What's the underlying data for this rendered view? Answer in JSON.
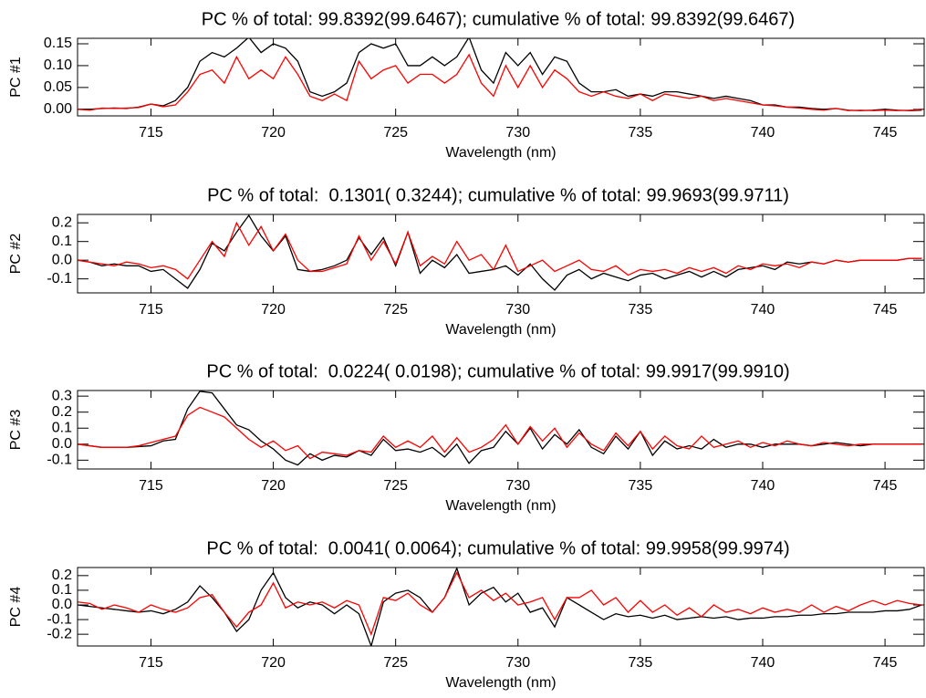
{
  "chart_data": [
    {
      "type": "line",
      "title": "PC % of total: 99.8392(99.6467); cumulative % of total: 99.8392(99.6467)",
      "xlabel": "Wavelength (nm)",
      "ylabel": "PC #1",
      "x": [
        712,
        712.5,
        713,
        713.5,
        714,
        714.5,
        715,
        715.5,
        716,
        716.5,
        717,
        717.5,
        718,
        718.5,
        719,
        719.5,
        720,
        720.5,
        721,
        721.5,
        722,
        722.5,
        723,
        723.5,
        724,
        724.5,
        725,
        725.5,
        726,
        726.5,
        727,
        727.5,
        728,
        728.5,
        729,
        729.5,
        730,
        730.5,
        731,
        731.5,
        732,
        732.5,
        733,
        733.5,
        734,
        734.5,
        735,
        735.5,
        736,
        736.5,
        737,
        737.5,
        738,
        738.5,
        739,
        739.5,
        740,
        740.5,
        741,
        741.5,
        742,
        742.5,
        743,
        743.5,
        744,
        744.5,
        745,
        745.5,
        746,
        746.5
      ],
      "xlim": [
        712,
        746.6
      ],
      "xticks": [
        715,
        720,
        725,
        730,
        735,
        740,
        745
      ],
      "ylim": [
        -0.015,
        0.1625
      ],
      "yticks": [
        {
          "value": 0,
          "label": "0.00"
        },
        0.05,
        {
          "value": 0.1,
          "label": "0.10"
        },
        0.15
      ],
      "series": [
        {
          "color": "#000000",
          "values": [
            0,
            0,
            0.002,
            0.003,
            0.002,
            0.005,
            0.012,
            0.008,
            0.02,
            0.05,
            0.11,
            0.13,
            0.12,
            0.14,
            0.165,
            0.13,
            0.15,
            0.14,
            0.11,
            0.04,
            0.03,
            0.04,
            0.06,
            0.13,
            0.15,
            0.14,
            0.15,
            0.1,
            0.1,
            0.12,
            0.1,
            0.12,
            0.165,
            0.09,
            0.06,
            0.13,
            0.1,
            0.13,
            0.08,
            0.12,
            0.11,
            0.06,
            0.04,
            0.04,
            0.045,
            0.03,
            0.035,
            0.03,
            0.04,
            0.04,
            0.035,
            0.03,
            0.025,
            0.03,
            0.025,
            0.02,
            0.01,
            0.01,
            0.005,
            0.005,
            0.002,
            0,
            0.002,
            -0.002,
            -0.003,
            -0.002,
            0,
            -0.002,
            -0.003,
            -0.002
          ]
        },
        {
          "color": "#ff0000",
          "values": [
            0,
            -0.002,
            0.003,
            0.002,
            0.003,
            0.004,
            0.012,
            0.006,
            0.01,
            0.04,
            0.08,
            0.09,
            0.06,
            0.12,
            0.07,
            0.09,
            0.07,
            0.12,
            0.08,
            0.03,
            0.02,
            0.035,
            0.02,
            0.11,
            0.07,
            0.09,
            0.1,
            0.06,
            0.08,
            0.08,
            0.06,
            0.08,
            0.125,
            0.06,
            0.03,
            0.1,
            0.05,
            0.1,
            0.05,
            0.09,
            0.07,
            0.04,
            0.03,
            0.04,
            0.03,
            0.025,
            0.035,
            0.02,
            0.035,
            0.03,
            0.025,
            0.03,
            0.02,
            0.025,
            0.02,
            0.015,
            0.01,
            0.008,
            0.005,
            0.003,
            0,
            -0.002,
            0.002,
            -0.003,
            -0.002,
            -0.003,
            -0.002,
            -0.003,
            -0.002,
            0
          ]
        }
      ]
    },
    {
      "type": "line",
      "title": "PC % of total:  0.1301( 0.3244); cumulative % of total: 99.9693(99.9711)",
      "xlabel": "Wavelength (nm)",
      "ylabel": "PC #2",
      "x": [
        712,
        712.5,
        713,
        713.5,
        714,
        714.5,
        715,
        715.5,
        716,
        716.5,
        717,
        717.5,
        718,
        718.5,
        719,
        719.5,
        720,
        720.5,
        721,
        721.5,
        722,
        722.5,
        723,
        723.5,
        724,
        724.5,
        725,
        725.5,
        726,
        726.5,
        727,
        727.5,
        728,
        728.5,
        729,
        729.5,
        730,
        730.5,
        731,
        731.5,
        732,
        732.5,
        733,
        733.5,
        734,
        734.5,
        735,
        735.5,
        736,
        736.5,
        737,
        737.5,
        738,
        738.5,
        739,
        739.5,
        740,
        740.5,
        741,
        741.5,
        742,
        742.5,
        743,
        743.5,
        744,
        744.5,
        745,
        745.5,
        746,
        746.5
      ],
      "xlim": [
        712,
        746.6
      ],
      "xticks": [
        715,
        720,
        725,
        730,
        735,
        740,
        745
      ],
      "ylim": [
        -0.175,
        0.245
      ],
      "yticks": [
        -0.1,
        {
          "value": 0,
          "label": "0.0"
        },
        0.1,
        0.2
      ],
      "series": [
        {
          "color": "#000000",
          "values": [
            0,
            -0.01,
            -0.03,
            -0.02,
            -0.03,
            -0.03,
            -0.06,
            -0.05,
            -0.1,
            -0.15,
            -0.05,
            0.09,
            0.05,
            0.15,
            0.24,
            0.13,
            0.05,
            0.13,
            -0.05,
            -0.06,
            -0.05,
            -0.03,
            0.0,
            0.12,
            0.03,
            0.12,
            -0.03,
            0.15,
            -0.07,
            0.0,
            -0.04,
            0.03,
            -0.07,
            -0.06,
            -0.05,
            -0.03,
            -0.08,
            -0.02,
            -0.1,
            -0.16,
            -0.08,
            -0.05,
            -0.1,
            -0.07,
            -0.09,
            -0.11,
            -0.08,
            -0.07,
            -0.1,
            -0.08,
            -0.06,
            -0.09,
            -0.06,
            -0.09,
            -0.05,
            -0.04,
            -0.03,
            -0.05,
            -0.01,
            -0.02,
            -0.01,
            -0.02,
            0,
            -0.01,
            0,
            0,
            0,
            0,
            0.01,
            0.01
          ]
        },
        {
          "color": "#ff0000",
          "values": [
            0,
            -0.01,
            -0.02,
            -0.03,
            -0.01,
            -0.02,
            -0.04,
            -0.03,
            -0.05,
            -0.1,
            0.0,
            0.1,
            0.02,
            0.2,
            0.08,
            0.18,
            0.05,
            0.14,
            0.0,
            -0.06,
            -0.06,
            -0.04,
            -0.02,
            0.13,
            0.0,
            0.1,
            -0.02,
            0.15,
            -0.03,
            0.02,
            -0.02,
            0.1,
            0.0,
            0.03,
            -0.05,
            0.08,
            -0.06,
            -0.03,
            0.0,
            -0.06,
            -0.03,
            0.0,
            -0.05,
            -0.06,
            -0.03,
            -0.08,
            -0.05,
            -0.06,
            -0.05,
            -0.07,
            -0.04,
            -0.06,
            -0.04,
            -0.07,
            -0.03,
            -0.05,
            -0.02,
            -0.03,
            -0.02,
            -0.04,
            -0.01,
            -0.02,
            0,
            -0.01,
            0,
            0,
            0,
            0,
            0.01,
            0.01
          ]
        }
      ]
    },
    {
      "type": "line",
      "title": "PC % of total:  0.0224( 0.0198); cumulative % of total: 99.9917(99.9910)",
      "xlabel": "Wavelength (nm)",
      "ylabel": "PC #3",
      "x": [
        712,
        712.5,
        713,
        713.5,
        714,
        714.5,
        715,
        715.5,
        716,
        716.5,
        717,
        717.5,
        718,
        718.5,
        719,
        719.5,
        720,
        720.5,
        721,
        721.5,
        722,
        722.5,
        723,
        723.5,
        724,
        724.5,
        725,
        725.5,
        726,
        726.5,
        727,
        727.5,
        728,
        728.5,
        729,
        729.5,
        730,
        730.5,
        731,
        731.5,
        732,
        732.5,
        733,
        733.5,
        734,
        734.5,
        735,
        735.5,
        736,
        736.5,
        737,
        737.5,
        738,
        738.5,
        739,
        739.5,
        740,
        740.5,
        741,
        741.5,
        742,
        742.5,
        743,
        743.5,
        744,
        744.5,
        745,
        745.5,
        746,
        746.5
      ],
      "xlim": [
        712,
        746.6
      ],
      "xticks": [
        715,
        720,
        725,
        730,
        735,
        740,
        745
      ],
      "ylim": [
        -0.155,
        0.335
      ],
      "yticks": [
        -0.1,
        {
          "value": 0,
          "label": "0.0"
        },
        0.1,
        0.2,
        0.3
      ],
      "series": [
        {
          "color": "#000000",
          "values": [
            0,
            -0.01,
            -0.02,
            -0.02,
            -0.02,
            -0.015,
            -0.01,
            0.02,
            0.03,
            0.22,
            0.33,
            0.32,
            0.22,
            0.12,
            0.09,
            0.02,
            -0.03,
            -0.1,
            -0.13,
            -0.06,
            -0.1,
            -0.07,
            -0.08,
            -0.04,
            -0.07,
            0.03,
            -0.04,
            -0.03,
            -0.05,
            -0.02,
            -0.08,
            0.0,
            -0.12,
            -0.04,
            -0.02,
            0.08,
            0.0,
            0.1,
            -0.03,
            0.06,
            0.0,
            0.09,
            -0.02,
            -0.06,
            0.05,
            -0.03,
            0.08,
            -0.07,
            0.02,
            -0.03,
            -0.01,
            -0.03,
            0.03,
            -0.02,
            0.0,
            0.0,
            -0.02,
            0.0,
            0.0,
            0.0,
            -0.01,
            0.0,
            0.01,
            0.0,
            -0.01,
            0,
            0,
            0,
            0,
            0
          ]
        },
        {
          "color": "#ff0000",
          "values": [
            0,
            -0.01,
            -0.02,
            -0.02,
            -0.02,
            -0.01,
            0.01,
            0.03,
            0.05,
            0.18,
            0.23,
            0.2,
            0.17,
            0.1,
            0.03,
            -0.02,
            0.02,
            -0.04,
            -0.01,
            -0.09,
            -0.05,
            -0.06,
            -0.07,
            -0.04,
            -0.05,
            0.05,
            -0.02,
            0.02,
            -0.02,
            0.05,
            -0.05,
            0.04,
            -0.05,
            -0.02,
            0.03,
            0.12,
            0.0,
            0.11,
            0.02,
            0.1,
            -0.02,
            0.07,
            0.0,
            -0.04,
            0.07,
            -0.01,
            0.08,
            -0.03,
            0.05,
            -0.01,
            -0.03,
            0.05,
            -0.02,
            0.0,
            0.02,
            -0.02,
            0.01,
            -0.01,
            0.02,
            0.0,
            -0.01,
            0.01,
            0.0,
            -0.01,
            0.0,
            0,
            0,
            0,
            0,
            0
          ]
        }
      ]
    },
    {
      "type": "line",
      "title": "PC % of total:  0.0041( 0.0064); cumulative % of total: 99.9958(99.9974)",
      "xlabel": "Wavelength (nm)",
      "ylabel": "PC #4",
      "x": [
        712,
        712.5,
        713,
        713.5,
        714,
        714.5,
        715,
        715.5,
        716,
        716.5,
        717,
        717.5,
        718,
        718.5,
        719,
        719.5,
        720,
        720.5,
        721,
        721.5,
        722,
        722.5,
        723,
        723.5,
        724,
        724.5,
        725,
        725.5,
        726,
        726.5,
        727,
        727.5,
        728,
        728.5,
        729,
        729.5,
        730,
        730.5,
        731,
        731.5,
        732,
        732.5,
        733,
        733.5,
        734,
        734.5,
        735,
        735.5,
        736,
        736.5,
        737,
        737.5,
        738,
        738.5,
        739,
        739.5,
        740,
        740.5,
        741,
        741.5,
        742,
        742.5,
        743,
        743.5,
        744,
        744.5,
        745,
        745.5,
        746,
        746.5
      ],
      "xlim": [
        712,
        746.6
      ],
      "xticks": [
        715,
        720,
        725,
        730,
        735,
        740,
        745
      ],
      "ylim": [
        -0.28,
        0.255
      ],
      "yticks": [
        -0.2,
        -0.1,
        {
          "value": 0,
          "label": "0.0"
        },
        0.1,
        0.2
      ],
      "series": [
        {
          "color": "#000000",
          "values": [
            0.0,
            -0.01,
            -0.02,
            -0.03,
            -0.04,
            -0.05,
            -0.04,
            -0.06,
            -0.03,
            0.02,
            0.13,
            0.05,
            -0.05,
            -0.18,
            -0.1,
            0.1,
            0.22,
            0.05,
            -0.02,
            0.02,
            0.0,
            -0.06,
            0.0,
            -0.06,
            -0.28,
            0.02,
            0.08,
            0.1,
            0.05,
            -0.05,
            0.05,
            0.25,
            0.0,
            0.08,
            0.12,
            0.02,
            0.08,
            -0.05,
            -0.02,
            -0.15,
            0.05,
            0.0,
            -0.05,
            -0.1,
            -0.06,
            -0.08,
            -0.07,
            -0.09,
            -0.07,
            -0.1,
            -0.09,
            -0.08,
            -0.09,
            -0.08,
            -0.1,
            -0.09,
            -0.09,
            -0.08,
            -0.08,
            -0.07,
            -0.07,
            -0.06,
            -0.06,
            -0.05,
            -0.05,
            -0.05,
            -0.04,
            -0.04,
            -0.03,
            0.0
          ]
        },
        {
          "color": "#ff0000",
          "values": [
            0.02,
            0.01,
            -0.03,
            0.0,
            -0.02,
            -0.05,
            0.0,
            -0.03,
            -0.05,
            -0.02,
            0.05,
            0.07,
            -0.05,
            -0.15,
            -0.05,
            0.0,
            0.15,
            -0.02,
            0.02,
            0.0,
            0.02,
            -0.02,
            0.03,
            0.0,
            -0.2,
            0.05,
            0.03,
            0.08,
            0.0,
            -0.05,
            0.05,
            0.22,
            0.05,
            0.1,
            0.03,
            0.08,
            0.0,
            0.02,
            0.05,
            -0.1,
            0.05,
            0.05,
            0.1,
            0.0,
            0.05,
            -0.05,
            0.03,
            -0.05,
            0.0,
            -0.07,
            -0.02,
            -0.08,
            0.0,
            -0.05,
            -0.03,
            -0.06,
            -0.02,
            -0.05,
            -0.03,
            -0.05,
            0.0,
            -0.05,
            -0.01,
            -0.04,
            0.0,
            0.03,
            0.0,
            0.03,
            0.01,
            0.0
          ]
        }
      ]
    }
  ]
}
